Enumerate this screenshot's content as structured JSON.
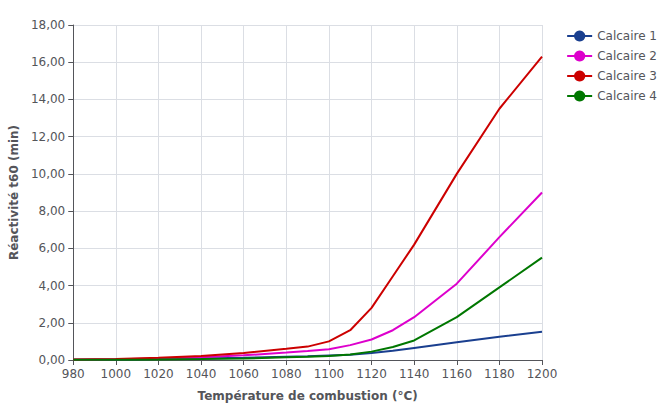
{
  "chart_data": {
    "type": "line",
    "x_label": "Température de combustion (°C)",
    "y_label": "Réactivité t60 (min)",
    "x": [
      980,
      1000,
      1020,
      1040,
      1060,
      1080,
      1090,
      1100,
      1110,
      1120,
      1130,
      1140,
      1160,
      1180,
      1200
    ],
    "series": [
      {
        "name": "Calcaire 1",
        "color": "#1a3f8f",
        "values": [
          0.02,
          0.03,
          0.05,
          0.08,
          0.12,
          0.18,
          0.2,
          0.24,
          0.28,
          0.38,
          0.5,
          0.65,
          0.95,
          1.25,
          1.52
        ]
      },
      {
        "name": "Calcaire 2",
        "color": "#dd00cc",
        "values": [
          0.02,
          0.04,
          0.08,
          0.15,
          0.25,
          0.4,
          0.48,
          0.58,
          0.8,
          1.1,
          1.6,
          2.3,
          4.1,
          6.6,
          9.0
        ]
      },
      {
        "name": "Calcaire 3",
        "color": "#cc0000",
        "values": [
          0.03,
          0.06,
          0.12,
          0.22,
          0.38,
          0.6,
          0.72,
          1.0,
          1.6,
          2.8,
          4.5,
          6.2,
          10.0,
          13.5,
          16.3
        ]
      },
      {
        "name": "Calcaire 4",
        "color": "#007700",
        "values": [
          0.01,
          0.02,
          0.03,
          0.05,
          0.08,
          0.15,
          0.18,
          0.22,
          0.3,
          0.45,
          0.7,
          1.05,
          2.3,
          3.9,
          5.5
        ]
      }
    ],
    "xlim": [
      980,
      1200
    ],
    "xticks": [
      980,
      1000,
      1020,
      1040,
      1060,
      1080,
      1100,
      1120,
      1140,
      1160,
      1180,
      1200
    ],
    "ylim": [
      0,
      18
    ],
    "yticks": [
      {
        "value": 0,
        "label": "0,00"
      },
      {
        "value": 2,
        "label": "2,00"
      },
      {
        "value": 4,
        "label": "4,00"
      },
      {
        "value": 6,
        "label": "6,00"
      },
      {
        "value": 8,
        "label": "8,00"
      },
      {
        "value": 10,
        "label": "10,00"
      },
      {
        "value": 12,
        "label": "12,00"
      },
      {
        "value": 14,
        "label": "14,00"
      },
      {
        "value": 16,
        "label": "16,00"
      },
      {
        "value": 18,
        "label": "18,00"
      }
    ],
    "grid": true,
    "legend": "right"
  }
}
